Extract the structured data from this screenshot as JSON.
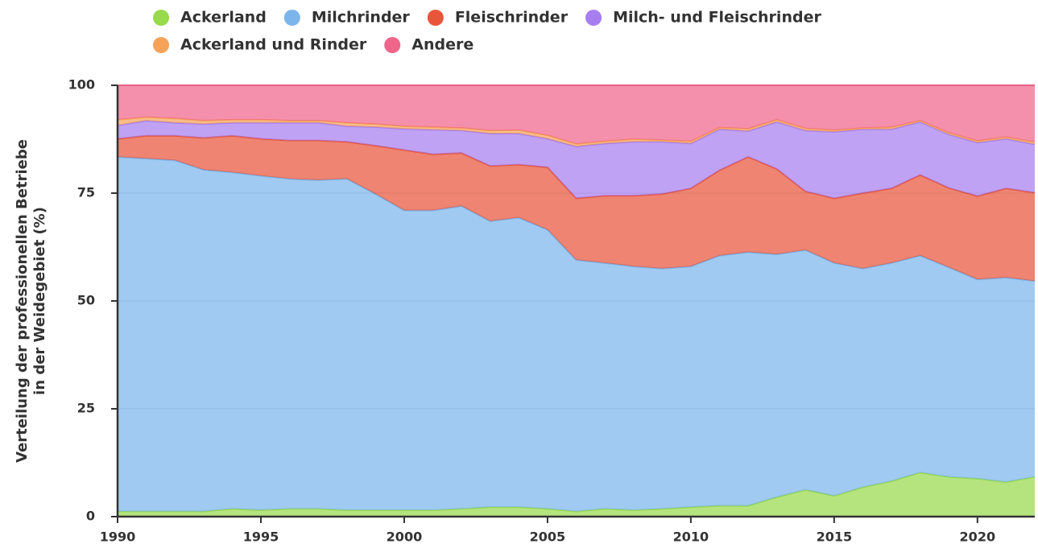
{
  "chart_data": {
    "type": "stacked_area",
    "y_label": [
      "Verteilung der professionellen Betriebe",
      "in der Weidegebiet (%)"
    ],
    "x": [
      1990,
      1991,
      1992,
      1993,
      1994,
      1995,
      1996,
      1997,
      1998,
      1999,
      2000,
      2001,
      2002,
      2003,
      2004,
      2005,
      2006,
      2007,
      2008,
      2009,
      2010,
      2011,
      2012,
      2013,
      2014,
      2015,
      2016,
      2017,
      2018,
      2019,
      2020,
      2021,
      2022
    ],
    "xlim": [
      1990,
      2022
    ],
    "xticks": [
      1990,
      1995,
      2000,
      2005,
      2010,
      2015,
      2020
    ],
    "ylim": [
      0,
      100
    ],
    "yticks": [
      0,
      25,
      50,
      75,
      100
    ],
    "grid": true,
    "legend": "top",
    "series": [
      {
        "name": "Ackerland",
        "color": "#99d94c",
        "values": [
          1.2,
          1.2,
          1.2,
          1.2,
          1.8,
          1.5,
          1.8,
          1.8,
          1.5,
          1.5,
          1.5,
          1.5,
          1.8,
          2.2,
          2.2,
          1.8,
          1.2,
          1.8,
          1.5,
          1.8,
          2.2,
          2.5,
          2.5,
          4.5,
          6.2,
          4.8,
          6.8,
          8.2,
          10.2,
          9.2,
          8.8,
          8.0,
          9.2
        ]
      },
      {
        "name": "Milchrinder",
        "color": "#7cb5ec",
        "values": [
          82.2,
          81.8,
          81.4,
          79.2,
          78,
          77.5,
          76.5,
          76.2,
          76.8,
          73.3,
          69.5,
          69.5,
          70.2,
          66.3,
          67.1,
          64.7,
          58.3,
          57,
          56.5,
          55.7,
          55.8,
          58,
          58.8,
          56.3,
          55.6,
          54,
          50.7,
          50.6,
          50.3,
          48.6,
          46.2,
          47.4,
          45.4
        ]
      },
      {
        "name": "Fleischrinder",
        "color": "#e8553a",
        "values": [
          4.2,
          5.3,
          5.7,
          7.4,
          8.5,
          8.6,
          8.9,
          9.2,
          8.6,
          11.2,
          14,
          13,
          12.3,
          12.8,
          12.3,
          14.5,
          14.3,
          15.6,
          16.4,
          17.3,
          18.1,
          19.8,
          22.1,
          19.8,
          13.6,
          15,
          17.5,
          17.3,
          18.7,
          18.4,
          19.3,
          20.7,
          20.5
        ]
      },
      {
        "name": "Milch- und Fleischrinder",
        "color": "#a77ef0",
        "values": [
          3.1,
          3.5,
          3,
          3.2,
          3,
          3.7,
          4.1,
          4.1,
          3.6,
          4.3,
          4.9,
          5.7,
          5.2,
          7.5,
          7.2,
          6.6,
          12,
          12.1,
          12.5,
          12.1,
          10.4,
          9.5,
          6,
          10.9,
          14.1,
          15.4,
          14.8,
          13.7,
          12.3,
          12.4,
          12.4,
          11.5,
          11.2
        ]
      },
      {
        "name": "Ackerland und Rinder",
        "color": "#f6a35a",
        "values": [
          1.3,
          0.8,
          1,
          0.8,
          0.7,
          0.7,
          0.5,
          0.5,
          0.8,
          0.7,
          0.6,
          0.6,
          0.6,
          0.7,
          0.8,
          0.8,
          0.6,
          0.5,
          0.6,
          0.4,
          0.5,
          0.4,
          0.5,
          0.5,
          0.5,
          0.4,
          0.3,
          0.5,
          0.3,
          0.4,
          0.4,
          0.4,
          0.5
        ]
      },
      {
        "name": "Andere",
        "color": "#f0658a",
        "values": [
          8,
          7.4,
          7.7,
          8.2,
          8,
          8,
          8.2,
          8.2,
          8.7,
          9,
          9.5,
          9.7,
          9.9,
          10.5,
          10.4,
          11.6,
          13.6,
          13,
          12.5,
          12.7,
          13,
          9.8,
          10.1,
          8,
          10,
          10.4,
          9.9,
          9.7,
          8.2,
          11,
          12.9,
          12,
          13.2
        ]
      }
    ]
  }
}
